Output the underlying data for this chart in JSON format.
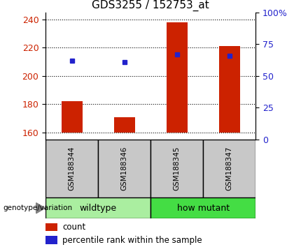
{
  "title": "GDS3255 / 152753_at",
  "samples": [
    "GSM188344",
    "GSM188346",
    "GSM188345",
    "GSM188347"
  ],
  "count_values": [
    182,
    171,
    238,
    221
  ],
  "percentile_values": [
    211,
    210,
    215,
    214
  ],
  "ylim_left": [
    155,
    245
  ],
  "yticks_left": [
    160,
    180,
    200,
    220,
    240
  ],
  "yticks_right": [
    0,
    25,
    50,
    75,
    100
  ],
  "ylim_right": [
    0,
    100
  ],
  "bar_color": "#CC2200",
  "dot_color": "#2222CC",
  "tick_color_left": "#CC2200",
  "tick_color_right": "#2222CC",
  "gray_cell_color": "#C8C8C8",
  "wildtype_color": "#AAEEA0",
  "howmutant_color": "#44DD44",
  "genotype_label": "genotype/variation",
  "legend_count": "count",
  "legend_pct": "percentile rank within the sample",
  "base_value": 160,
  "bar_width": 0.4,
  "dot_size": 5,
  "group_info": [
    {
      "label": "wildtype",
      "indices": [
        0,
        1
      ]
    },
    {
      "label": "how mutant",
      "indices": [
        2,
        3
      ]
    }
  ]
}
